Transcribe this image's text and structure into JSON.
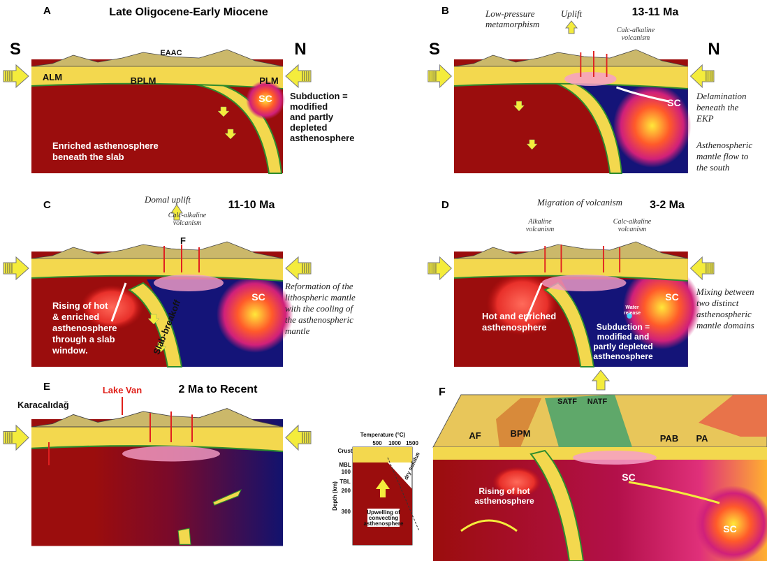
{
  "panel_a": {
    "letter": "A",
    "title": "Late Oligocene-Early Miocene",
    "south": "S",
    "north": "N",
    "labels": {
      "eaac": "EAAC",
      "alm": "ALM",
      "bplm": "BPLM",
      "plm": "PLM",
      "sc": "SC"
    },
    "note": [
      "Subduction =",
      "modified",
      "and partly",
      "depleted",
      "asthenosphere"
    ],
    "mantle": [
      "Enriched asthenosphere",
      "beneath the slab"
    ]
  },
  "panel_b": {
    "letter": "B",
    "age": "13-11 Ma",
    "south": "S",
    "north": "N",
    "metamorphism": [
      "Low-pressure",
      "metamorphism"
    ],
    "uplift": "Uplift",
    "volcanism": [
      "Calc-alkaline",
      "volcanism"
    ],
    "sc": "SC",
    "notes": [
      [
        "Delamination",
        "beneath the",
        "EKP"
      ],
      [
        "Asthenospheric",
        "mantle flow to",
        "the south"
      ]
    ]
  },
  "panel_c": {
    "letter": "C",
    "uplift": "Domal uplift",
    "age": "11-10 Ma",
    "volcanism": [
      "Calc-alkaline",
      "volcanism"
    ],
    "fault": "F",
    "breakoff": "Slab-breakoff",
    "sc": "SC",
    "mantle": [
      "Rising of hot",
      "& enriched",
      "asthenosphere",
      "through a slab",
      "window."
    ],
    "note": [
      "Reformation of the",
      "lithospheric mantle",
      "with the cooling of",
      "the asthenospheric",
      "mantle"
    ]
  },
  "panel_d": {
    "letter": "D",
    "migration": "Migration of volcanism",
    "age": "3-2 Ma",
    "alkaline": [
      "Alkaline",
      "volcanism"
    ],
    "volcanism": [
      "Calc-alkaline",
      "volcanism"
    ],
    "water": [
      "Water",
      "release"
    ],
    "sc": "SC",
    "mantle": [
      "Hot and enriched",
      "asthenosphere"
    ],
    "subduction": [
      "Subduction =",
      "modified and",
      "partly depleted",
      "asthenosphere"
    ],
    "note": [
      "Mixing between",
      "two distinct",
      "asthenospheric",
      "mantle domains"
    ]
  },
  "panel_e": {
    "letter": "E",
    "lake": "Lake Van",
    "age": "2 Ma to Recent",
    "place": "Karacalıdağ"
  },
  "inset": {
    "x_label": "Temperature (°C)",
    "x_ticks": [
      "500",
      "1000",
      "1500"
    ],
    "y_label": "Depth (km)",
    "y_ticks": [
      "100",
      "200",
      "300"
    ],
    "layers": [
      "Crust",
      "MBL",
      "TBL"
    ],
    "solidus": "dry solidus",
    "upwelling": [
      "Upwelling of",
      "convecting",
      "asthenosphere"
    ]
  },
  "panel_f": {
    "letter": "F",
    "labels": [
      "AF",
      "BPM",
      "SATF",
      "NATF",
      "PAB",
      "PA",
      "SC",
      "SC"
    ],
    "mantle": [
      "Rising of hot",
      "asthenosphere"
    ]
  }
}
